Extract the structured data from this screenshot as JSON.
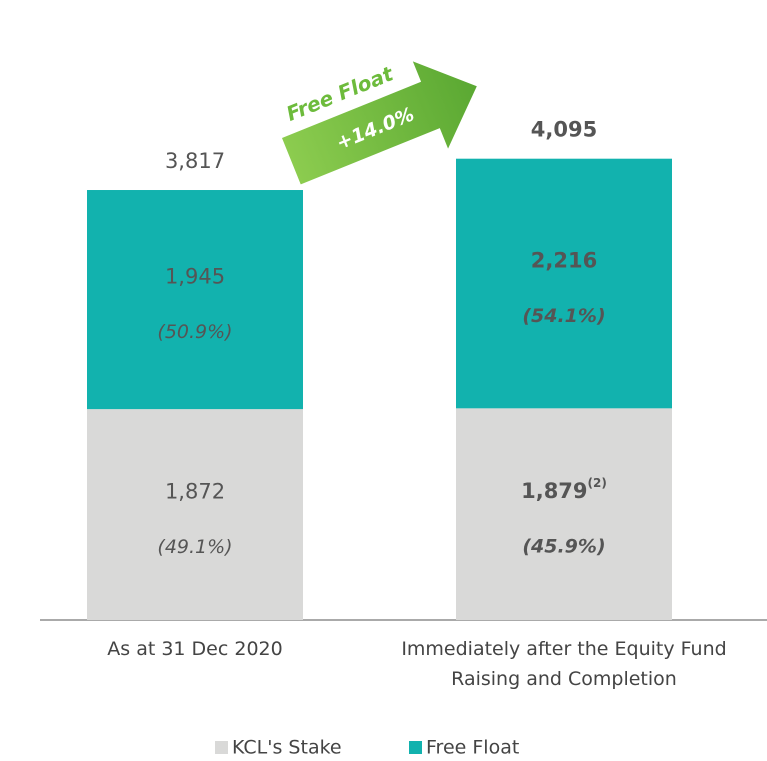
{
  "chart_data": {
    "type": "stacked_bar",
    "categories": [
      "As at 31 Dec 2020",
      "Immediately after the Equity Fund Raising and Completion"
    ],
    "series": [
      {
        "name": "KCL's Stake",
        "color": "#d9d9d8",
        "values": [
          1872,
          1879
        ],
        "value_labels": [
          "1,872",
          "1,879"
        ],
        "percent_labels": [
          "(49.1%)",
          "(45.9%)"
        ]
      },
      {
        "name": "Free Float",
        "color": "#12b2ae",
        "values": [
          1945,
          2216
        ],
        "value_labels": [
          "1,945",
          "2,216"
        ],
        "percent_labels": [
          "(50.9%)",
          "(54.1%)"
        ]
      }
    ],
    "total_labels": [
      "3,817",
      "4,095"
    ],
    "footnote": "(2)",
    "arrow_title": "Free Float",
    "arrow_label": "+14.0%"
  }
}
